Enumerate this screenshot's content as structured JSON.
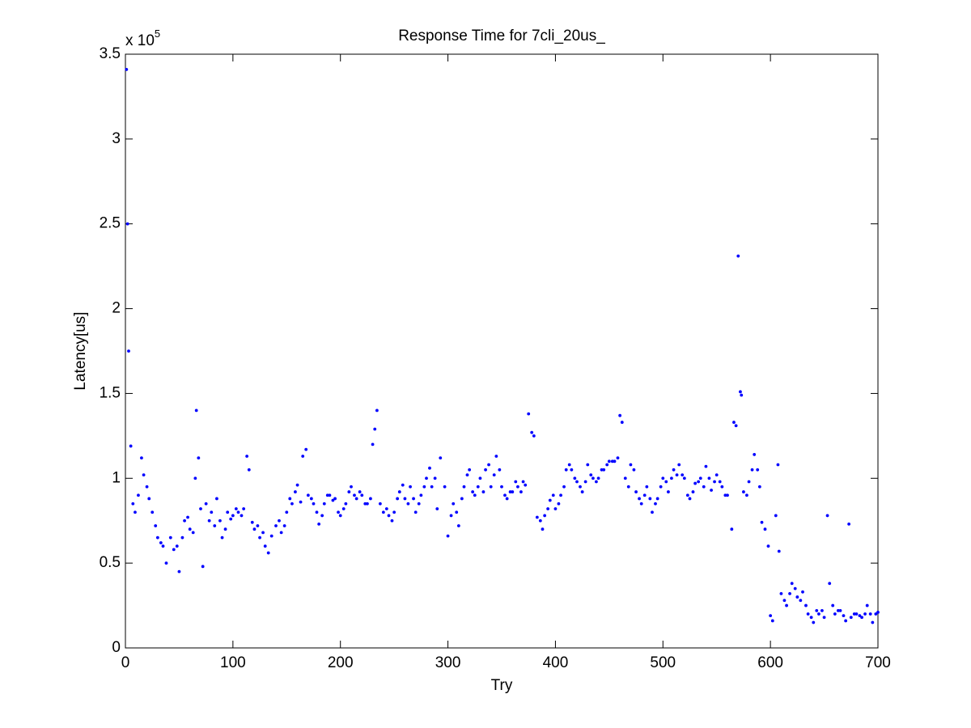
{
  "chart_data": {
    "type": "scatter",
    "title": "Response Time for 7cli_20us_",
    "x_label": "Try",
    "y_label": "Latency[us]",
    "y_multiplier": {
      "base": "x 10",
      "exponent": "5"
    },
    "xlim": [
      0,
      700
    ],
    "xticks": [
      0,
      100,
      200,
      300,
      400,
      500,
      600,
      700
    ],
    "ylim": [
      0,
      3.5
    ],
    "yticks": [
      0,
      0.5,
      1,
      1.5,
      2,
      2.5,
      3,
      3.5
    ],
    "grid": false,
    "color": "#0000ff",
    "x": [
      1,
      2,
      3,
      5,
      7,
      9,
      12,
      15,
      17,
      20,
      22,
      25,
      28,
      30,
      33,
      35,
      38,
      42,
      45,
      48,
      50,
      53,
      55,
      58,
      60,
      63,
      65,
      66,
      68,
      70,
      72,
      75,
      78,
      80,
      83,
      85,
      88,
      90,
      93,
      95,
      98,
      100,
      103,
      105,
      108,
      110,
      113,
      115,
      118,
      120,
      123,
      125,
      128,
      130,
      133,
      136,
      140,
      143,
      145,
      148,
      150,
      153,
      155,
      158,
      160,
      163,
      165,
      168,
      170,
      173,
      175,
      178,
      180,
      183,
      185,
      188,
      190,
      193,
      195,
      198,
      200,
      203,
      205,
      208,
      210,
      213,
      215,
      218,
      220,
      223,
      225,
      228,
      230,
      232,
      234,
      237,
      240,
      243,
      245,
      248,
      250,
      253,
      255,
      258,
      260,
      263,
      265,
      268,
      270,
      273,
      275,
      278,
      280,
      283,
      285,
      288,
      290,
      293,
      297,
      300,
      303,
      305,
      308,
      310,
      313,
      315,
      318,
      320,
      323,
      325,
      328,
      330,
      333,
      335,
      338,
      340,
      343,
      345,
      348,
      350,
      353,
      355,
      358,
      360,
      363,
      365,
      368,
      370,
      372,
      375,
      378,
      380,
      383,
      386,
      388,
      390,
      393,
      395,
      398,
      400,
      403,
      405,
      408,
      410,
      413,
      415,
      418,
      420,
      423,
      425,
      428,
      430,
      433,
      435,
      438,
      440,
      443,
      445,
      448,
      450,
      453,
      455,
      458,
      460,
      462,
      465,
      468,
      470,
      473,
      475,
      478,
      480,
      483,
      485,
      488,
      490,
      493,
      495,
      498,
      500,
      503,
      505,
      508,
      510,
      513,
      515,
      518,
      520,
      523,
      525,
      528,
      530,
      533,
      535,
      538,
      540,
      543,
      545,
      548,
      550,
      553,
      555,
      558,
      560,
      564,
      566,
      568,
      570,
      572,
      573,
      575,
      578,
      580,
      583,
      585,
      588,
      590,
      592,
      595,
      598,
      600,
      602,
      605,
      607,
      608,
      610,
      613,
      615,
      618,
      620,
      623,
      625,
      628,
      630,
      633,
      635,
      638,
      640,
      643,
      645,
      648,
      650,
      653,
      655,
      658,
      660,
      663,
      665,
      668,
      670,
      673,
      675,
      678,
      680,
      683,
      685,
      688,
      690,
      693,
      695,
      698,
      700
    ],
    "values": [
      3.41,
      2.5,
      1.75,
      1.19,
      0.85,
      0.8,
      0.9,
      1.12,
      1.02,
      0.95,
      0.88,
      0.8,
      0.72,
      0.65,
      0.62,
      0.6,
      0.5,
      0.65,
      0.58,
      0.6,
      0.45,
      0.65,
      0.75,
      0.77,
      0.7,
      0.68,
      1.0,
      1.4,
      1.12,
      0.82,
      0.48,
      0.85,
      0.75,
      0.8,
      0.72,
      0.88,
      0.75,
      0.65,
      0.7,
      0.8,
      0.76,
      0.78,
      0.82,
      0.8,
      0.78,
      0.82,
      1.13,
      1.05,
      0.74,
      0.7,
      0.72,
      0.65,
      0.68,
      0.6,
      0.56,
      0.66,
      0.72,
      0.75,
      0.68,
      0.72,
      0.8,
      0.88,
      0.85,
      0.92,
      0.96,
      0.86,
      1.13,
      1.17,
      0.9,
      0.88,
      0.85,
      0.8,
      0.73,
      0.78,
      0.85,
      0.9,
      0.9,
      0.87,
      0.88,
      0.8,
      0.78,
      0.82,
      0.85,
      0.92,
      0.95,
      0.9,
      0.88,
      0.92,
      0.9,
      0.85,
      0.85,
      0.88,
      1.2,
      1.29,
      1.4,
      0.85,
      0.8,
      0.82,
      0.78,
      0.75,
      0.8,
      0.88,
      0.92,
      0.96,
      0.88,
      0.85,
      0.95,
      0.88,
      0.8,
      0.85,
      0.9,
      0.95,
      1.0,
      1.06,
      0.95,
      1.0,
      0.82,
      1.12,
      0.95,
      0.66,
      0.78,
      0.85,
      0.8,
      0.72,
      0.88,
      0.95,
      1.02,
      1.05,
      0.92,
      0.9,
      0.95,
      1.0,
      0.92,
      1.05,
      1.08,
      0.95,
      1.02,
      1.13,
      1.05,
      0.95,
      0.9,
      0.88,
      0.92,
      0.92,
      0.98,
      0.95,
      0.92,
      0.98,
      0.96,
      1.38,
      1.27,
      1.25,
      0.77,
      0.75,
      0.7,
      0.78,
      0.82,
      0.87,
      0.9,
      0.82,
      0.85,
      0.9,
      0.95,
      1.05,
      1.08,
      1.05,
      1.0,
      0.98,
      0.95,
      0.92,
      0.98,
      1.08,
      1.02,
      1.0,
      0.98,
      1.0,
      1.05,
      1.05,
      1.08,
      1.1,
      1.1,
      1.1,
      1.12,
      1.37,
      1.33,
      1.0,
      0.95,
      1.08,
      1.05,
      0.92,
      0.88,
      0.85,
      0.9,
      0.95,
      0.88,
      0.8,
      0.85,
      0.88,
      0.95,
      1.0,
      0.98,
      0.92,
      1.0,
      1.05,
      1.02,
      1.08,
      1.02,
      1.0,
      0.9,
      0.88,
      0.92,
      0.97,
      0.98,
      1.0,
      0.95,
      1.07,
      1.0,
      0.93,
      0.98,
      1.02,
      0.98,
      0.95,
      0.9,
      0.9,
      0.7,
      1.33,
      1.31,
      2.31,
      1.51,
      1.49,
      0.92,
      0.9,
      0.98,
      1.05,
      1.14,
      1.05,
      0.95,
      0.74,
      0.7,
      0.6,
      0.19,
      0.16,
      0.78,
      1.08,
      0.57,
      0.32,
      0.28,
      0.25,
      0.32,
      0.38,
      0.35,
      0.3,
      0.28,
      0.33,
      0.25,
      0.2,
      0.18,
      0.15,
      0.22,
      0.2,
      0.22,
      0.18,
      0.78,
      0.38,
      0.25,
      0.2,
      0.22,
      0.22,
      0.19,
      0.16,
      0.73,
      0.18,
      0.2,
      0.2,
      0.19,
      0.18,
      0.2,
      0.25,
      0.2,
      0.15,
      0.2,
      0.21
    ]
  }
}
